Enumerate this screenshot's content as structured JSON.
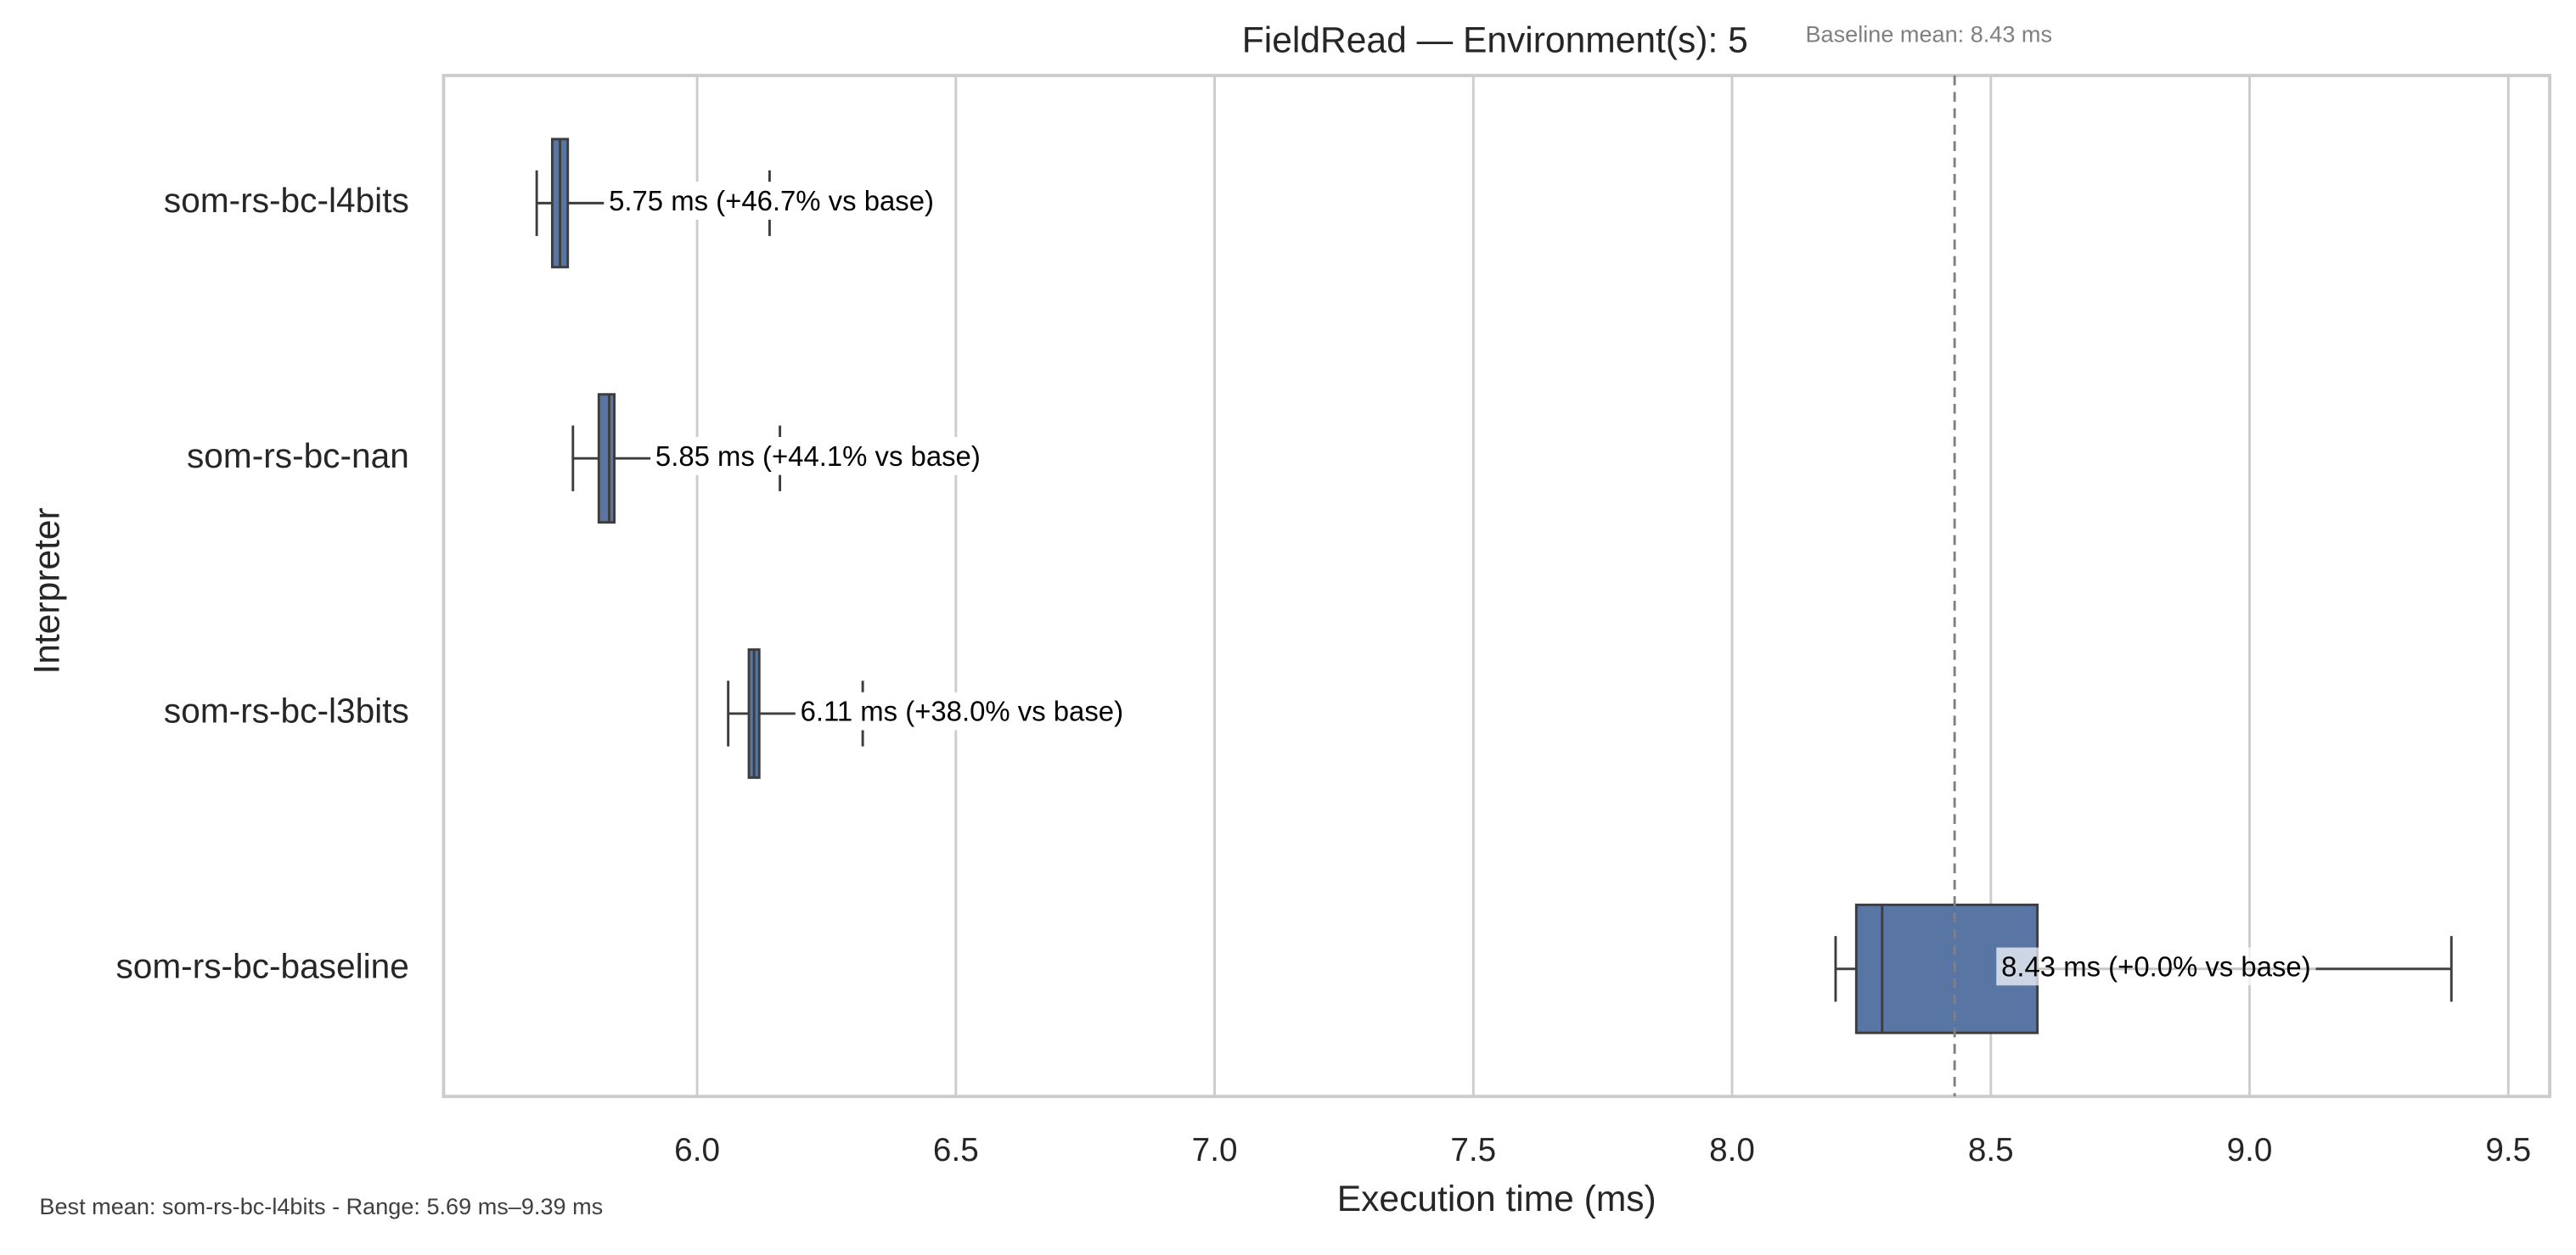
{
  "chart_data": {
    "type": "boxplot",
    "title": "FieldRead — Environment(s): 5",
    "annotation": "Baseline mean: 8.43 ms",
    "footer": "Best mean: som-rs-bc-l4bits - Range: 5.69 ms–9.39 ms",
    "xlabel": "Execution time (ms)",
    "ylabel": "Interpreter",
    "categories": [
      "som-rs-bc-l4bits",
      "som-rs-bc-nan",
      "som-rs-bc-l3bits",
      "som-rs-bc-baseline"
    ],
    "boxes": [
      {
        "low": 5.69,
        "q1": 5.72,
        "median": 5.735,
        "q3": 5.75,
        "high": 6.14
      },
      {
        "low": 5.76,
        "q1": 5.81,
        "median": 5.83,
        "q3": 5.84,
        "high": 6.16
      },
      {
        "low": 6.06,
        "q1": 6.1,
        "median": 6.11,
        "q3": 6.12,
        "high": 6.32
      },
      {
        "low": 8.2,
        "q1": 8.24,
        "median": 8.29,
        "q3": 8.59,
        "high": 9.39
      }
    ],
    "value_labels": [
      "5.75 ms  (+46.7% vs base)",
      "5.85 ms  (+44.1% vs base)",
      "6.11 ms  (+38.0% vs base)",
      "8.43 ms  (+0.0% vs base)"
    ],
    "reference_line": 8.43,
    "color": "#5975a4",
    "xlim": [
      5.51,
      9.58
    ],
    "xticks": [
      {
        "value": 6,
        "label": "6.0"
      },
      {
        "value": 6.5,
        "label": "6.5"
      },
      {
        "value": 7,
        "label": "7.0"
      },
      {
        "value": 7.5,
        "label": "7.5"
      },
      {
        "value": 8,
        "label": "8.0"
      },
      {
        "value": 8.5,
        "label": "8.5"
      },
      {
        "value": 9,
        "label": "9.0"
      },
      {
        "value": 9.5,
        "label": "9.5"
      }
    ],
    "grid": true
  }
}
